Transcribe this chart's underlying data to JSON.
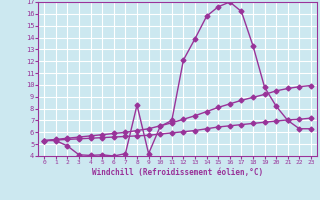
{
  "xlabel": "Windchill (Refroidissement éolien,°C)",
  "bg_color": "#cce8f0",
  "line_color": "#993399",
  "grid_color": "#ffffff",
  "xlim": [
    -0.5,
    23.5
  ],
  "ylim": [
    4,
    17
  ],
  "xticks": [
    0,
    1,
    2,
    3,
    4,
    5,
    6,
    7,
    8,
    9,
    10,
    11,
    12,
    13,
    14,
    15,
    16,
    17,
    18,
    19,
    20,
    21,
    22,
    23
  ],
  "yticks": [
    4,
    5,
    6,
    7,
    8,
    9,
    10,
    11,
    12,
    13,
    14,
    15,
    16,
    17
  ],
  "line1_x": [
    0,
    1,
    2,
    3,
    4,
    5,
    6,
    7,
    8,
    9,
    10,
    11,
    12,
    13,
    14,
    15,
    16,
    17,
    18,
    19,
    20,
    21,
    22,
    23
  ],
  "line1_y": [
    5.3,
    5.35,
    5.4,
    5.45,
    5.5,
    5.55,
    5.6,
    5.65,
    5.7,
    5.75,
    5.85,
    5.95,
    6.05,
    6.15,
    6.3,
    6.45,
    6.55,
    6.65,
    6.75,
    6.85,
    6.95,
    7.05,
    7.1,
    7.2
  ],
  "line2_x": [
    0,
    1,
    2,
    3,
    4,
    5,
    6,
    7,
    8,
    9,
    10,
    11,
    12,
    13,
    14,
    15,
    16,
    17,
    18,
    19,
    20,
    21,
    22,
    23
  ],
  "line2_y": [
    5.3,
    5.4,
    5.5,
    5.6,
    5.7,
    5.8,
    5.9,
    6.0,
    6.15,
    6.3,
    6.55,
    6.8,
    7.1,
    7.4,
    7.75,
    8.1,
    8.4,
    8.7,
    8.95,
    9.2,
    9.5,
    9.7,
    9.85,
    9.95
  ],
  "line3_x": [
    0,
    1,
    2,
    3,
    4,
    5,
    6,
    7,
    8,
    9,
    10,
    11,
    12,
    13,
    14,
    15,
    16,
    17,
    18,
    19,
    20,
    21,
    22,
    23
  ],
  "line3_y": [
    5.3,
    5.3,
    4.85,
    4.1,
    4.05,
    4.1,
    4.0,
    4.2,
    8.3,
    4.2,
    6.5,
    7.0,
    12.1,
    13.9,
    15.8,
    16.6,
    17.0,
    16.2,
    13.3,
    9.8,
    8.2,
    7.0,
    6.3,
    6.3
  ],
  "marker": "D",
  "markersize": 2.5,
  "linewidth": 1.0,
  "xlabel_fontsize": 5.5,
  "tick_fontsize": 5.0
}
